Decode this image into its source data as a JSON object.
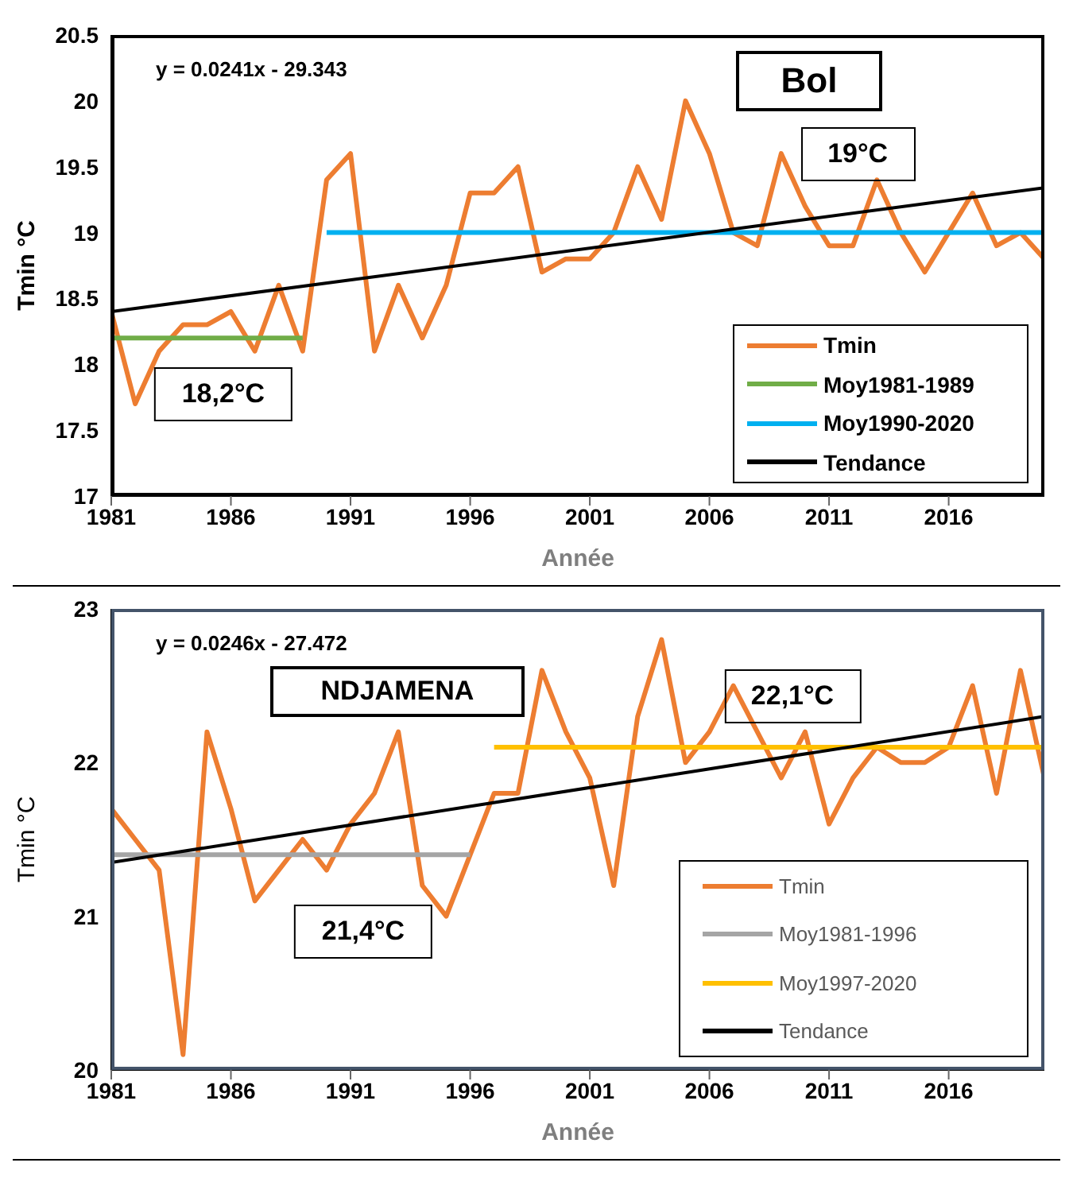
{
  "chart_data": [
    {
      "type": "line",
      "title": "Bol",
      "xlabel": "Année",
      "ylabel": "Tmin °C",
      "x": [
        1981,
        1982,
        1983,
        1984,
        1985,
        1986,
        1987,
        1988,
        1989,
        1990,
        1991,
        1992,
        1993,
        1994,
        1995,
        1996,
        1997,
        1998,
        1999,
        2000,
        2001,
        2002,
        2003,
        2004,
        2005,
        2006,
        2007,
        2008,
        2009,
        2010,
        2011,
        2012,
        2013,
        2014,
        2015,
        2016,
        2017,
        2018,
        2019,
        2020
      ],
      "series": [
        {
          "name": "Tmin",
          "color": "#ed7d31",
          "values": [
            18.4,
            17.7,
            18.1,
            18.3,
            18.3,
            18.4,
            18.1,
            18.6,
            18.1,
            19.4,
            19.6,
            18.1,
            18.6,
            18.2,
            18.6,
            19.3,
            19.3,
            19.5,
            18.7,
            18.8,
            18.8,
            19.0,
            19.5,
            19.1,
            20.0,
            19.6,
            19.0,
            18.9,
            19.6,
            19.2,
            18.9,
            18.9,
            19.4,
            19.0,
            18.7,
            19.0,
            19.3,
            18.9,
            19.0,
            18.8
          ]
        },
        {
          "name": "Moy1981-1989",
          "color": "#70ad47",
          "x": [
            1981,
            1989
          ],
          "values": [
            18.2,
            18.2
          ]
        },
        {
          "name": "Moy1990-2020",
          "color": "#00b0f0",
          "x": [
            1990,
            2020
          ],
          "values": [
            19.0,
            19.0
          ]
        },
        {
          "name": "Tendance",
          "color": "#000000",
          "x": [
            1981,
            2020
          ],
          "values": [
            18.4,
            19.34
          ]
        }
      ],
      "annotations": [
        "y = 0.0241x - 29.343",
        "18,2°C",
        "19°C"
      ],
      "xlim": [
        1981,
        2020
      ],
      "xticks": [
        1981,
        1986,
        1991,
        1996,
        2001,
        2006,
        2011,
        2016
      ],
      "ylim": [
        17,
        20.5
      ],
      "yticks": [
        17,
        17.5,
        18,
        18.5,
        19,
        19.5,
        20,
        20.5
      ],
      "grid": false,
      "legend": "bottom right",
      "marker": "none",
      "line_style": "solid"
    },
    {
      "type": "line",
      "title": "NDJAMENA",
      "xlabel": "Année",
      "ylabel": "Tmin °C",
      "x": [
        1981,
        1982,
        1983,
        1984,
        1985,
        1986,
        1987,
        1988,
        1989,
        1990,
        1991,
        1992,
        1993,
        1994,
        1995,
        1996,
        1997,
        1998,
        1999,
        2000,
        2001,
        2002,
        2003,
        2004,
        2005,
        2006,
        2007,
        2008,
        2009,
        2010,
        2011,
        2012,
        2013,
        2014,
        2015,
        2016,
        2017,
        2018,
        2019,
        2020
      ],
      "series": [
        {
          "name": "Tmin",
          "color": "#ed7d31",
          "values": [
            21.7,
            21.5,
            21.3,
            20.1,
            22.2,
            21.7,
            21.1,
            21.3,
            21.5,
            21.3,
            21.6,
            21.8,
            22.2,
            21.2,
            21.0,
            21.4,
            21.8,
            21.8,
            22.6,
            22.2,
            21.9,
            21.2,
            22.3,
            22.8,
            22.0,
            22.2,
            22.5,
            22.2,
            21.9,
            22.2,
            21.6,
            21.9,
            22.1,
            22.0,
            22.0,
            22.1,
            22.5,
            21.8,
            22.6,
            21.9
          ]
        },
        {
          "name": "Moy1981-1996",
          "color": "#a5a5a5",
          "x": [
            1981,
            1996
          ],
          "values": [
            21.4,
            21.4
          ]
        },
        {
          "name": "Moy1997-2020",
          "color": "#ffc000",
          "x": [
            1997,
            2020
          ],
          "values": [
            22.1,
            22.1
          ]
        },
        {
          "name": "Tendance",
          "color": "#000000",
          "x": [
            1981,
            2020
          ],
          "values": [
            21.35,
            22.3
          ]
        }
      ],
      "annotations": [
        "y = 0.0246x - 27.472",
        "21,4°C",
        "22,1°C"
      ],
      "xlim": [
        1981,
        2020
      ],
      "xticks": [
        1981,
        1986,
        1991,
        1996,
        2001,
        2006,
        2011,
        2016
      ],
      "ylim": [
        20,
        23
      ],
      "yticks": [
        20,
        21,
        22,
        23
      ],
      "grid": false,
      "legend": "bottom right",
      "marker": "none",
      "line_style": "solid"
    }
  ]
}
